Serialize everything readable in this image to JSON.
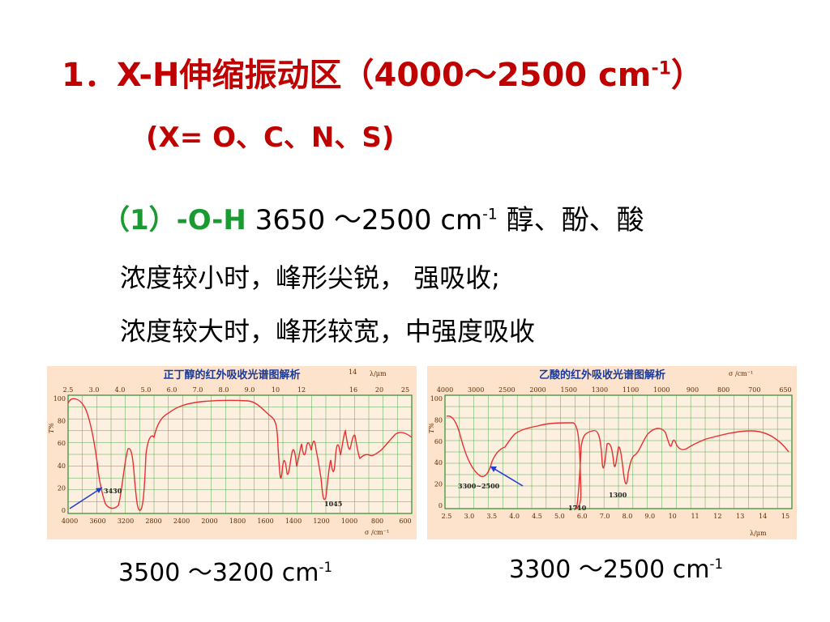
{
  "heading": {
    "title_main": "1．X-H伸缩振动区（4000～2500 cm",
    "title_sup": "-1",
    "title_end": "）",
    "subtitle": "(X= O、C、N、S)"
  },
  "oh": {
    "label": "（1）-O-H",
    "range_text": "  3650 ～2500 cm",
    "range_sup": "-1",
    "compounds": "   醇、酚、酸",
    "line1": "浓度较小时，峰形尖锐， 强吸收;",
    "line2": "浓度较大时，峰形较宽，中强度吸收"
  },
  "spectra": [
    {
      "title": "正丁醇的红外吸收光谱图解析",
      "top_axis_unit": "λ/μm",
      "top_ticks": [
        "2.5",
        "3.0",
        "4.0",
        "5.0",
        "6.0",
        "7.0",
        "8.0",
        "9.0",
        "10",
        "12",
        "14",
        "16",
        "20",
        "25"
      ],
      "bottom_axis_unit": "σ /cm⁻¹",
      "bottom_ticks": [
        "4000",
        "3600",
        "3200",
        "2800",
        "2400",
        "2000",
        "1800",
        "1600",
        "1400",
        "1200",
        "1000",
        "800",
        "600"
      ],
      "y_axis_label": "T%",
      "y_ticks": [
        "100",
        "80",
        "60",
        "40",
        "20",
        "0"
      ],
      "annotations": [
        "3430",
        "1045"
      ],
      "caption_main": "3500 ～3200 cm",
      "caption_sup": "-1"
    },
    {
      "title": "乙酸的红外吸收光谱图解析",
      "top_axis_unit": "σ /cm⁻¹",
      "top_ticks": [
        "4000",
        "3000",
        "2500",
        "2000",
        "1500",
        "1300",
        "1100",
        "1000",
        "900",
        "800",
        "700",
        "650"
      ],
      "bottom_axis_unit": "λ/μm",
      "bottom_ticks": [
        "2.5",
        "3.0",
        "3.5",
        "4.0",
        "4.5",
        "5.0",
        "6.0",
        "7.0",
        "8.0",
        "9.0",
        "10",
        "11",
        "12",
        "13",
        "14",
        "15"
      ],
      "y_axis_label": "T%",
      "y_ticks": [
        "100",
        "80",
        "60",
        "40",
        "20",
        "0"
      ],
      "annotations": [
        "3300~2500",
        "1710",
        "1300"
      ],
      "caption_main": "3300 ～2500 cm",
      "caption_sup": "-1"
    }
  ],
  "colors": {
    "heading": "#c00000",
    "oh_label": "#1a9a30",
    "panel_bg": "#fde3cc",
    "grid": "#2e8b2e",
    "curve": "#e83030",
    "arrow": "#1f3fd0"
  }
}
